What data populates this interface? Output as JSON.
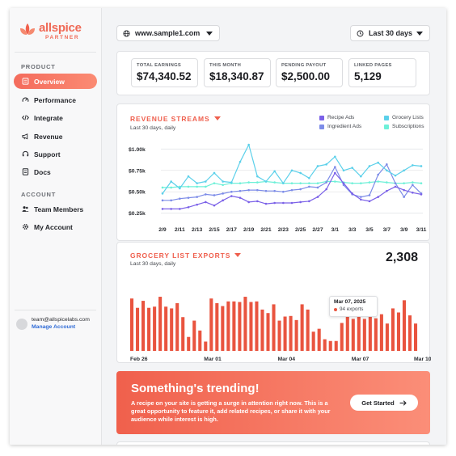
{
  "brand": {
    "name": "allspice",
    "subtitle": "PARTNER"
  },
  "sidebar": {
    "product_label": "PRODUCT",
    "product_items": [
      {
        "label": "Overview",
        "icon": "overview-icon",
        "active": true
      },
      {
        "label": "Performance",
        "icon": "gauge-icon"
      },
      {
        "label": "Integrate",
        "icon": "code-icon"
      },
      {
        "label": "Revenue",
        "icon": "megaphone-icon"
      },
      {
        "label": "Support",
        "icon": "headset-icon"
      },
      {
        "label": "Docs",
        "icon": "document-icon"
      }
    ],
    "account_label": "ACCOUNT",
    "account_items": [
      {
        "label": "Team Members",
        "icon": "users-icon"
      },
      {
        "label": "My Account",
        "icon": "gear-icon"
      }
    ],
    "account": {
      "email": "team@allspicelabs.com",
      "manage_label": "Manage Account"
    }
  },
  "header": {
    "site_select": "www.sample1.com",
    "range_select": "Last 30 days"
  },
  "stats": [
    {
      "label": "TOTAL EARNINGS",
      "value": "$74,340.52"
    },
    {
      "label": "THIS MONTH",
      "value": "$18,340.87"
    },
    {
      "label": "PENDING PAYOUT",
      "value": "$2,500.00"
    },
    {
      "label": "LINKED PAGES",
      "value": "5,129"
    }
  ],
  "revenue": {
    "title": "REVENUE STREAMS",
    "subtitle": "Last 30 days, daily",
    "legend": [
      {
        "name": "Recipe Ads",
        "color": "#7b61e8"
      },
      {
        "name": "Grocery Lists",
        "color": "#5bd0ea"
      },
      {
        "name": "Ingredient Ads",
        "color": "#7d8ce8"
      },
      {
        "name": "Subscriptions",
        "color": "#6ef0d8"
      }
    ]
  },
  "grocery": {
    "title": "GROCERY LIST EXPORTS",
    "subtitle": "Last 30 days, daily",
    "total": "2,308",
    "tooltip": {
      "date": "Mar 07, 2025",
      "value": "94 exports"
    }
  },
  "promo": {
    "title": "Something's trending!",
    "text": "A recipe on your site is getting a surge in attention right now. This is a great opportunity to feature it, add related recipes, or share it with your audience while interest is high.",
    "button": "Get Started"
  },
  "chart_data": [
    {
      "type": "line",
      "title": "REVENUE STREAMS",
      "x": [
        "2/9",
        "2/10",
        "2/11",
        "2/12",
        "2/13",
        "2/14",
        "2/15",
        "2/16",
        "2/17",
        "2/18",
        "2/19",
        "2/20",
        "2/21",
        "2/22",
        "2/23",
        "2/24",
        "2/25",
        "2/26",
        "2/27",
        "2/28",
        "3/1",
        "3/2",
        "3/3",
        "3/4",
        "3/5",
        "3/6",
        "3/7",
        "3/8",
        "3/9",
        "3/10",
        "3/11"
      ],
      "x_tick_labels": [
        "2/9",
        "2/11",
        "2/13",
        "2/15",
        "2/17",
        "2/19",
        "2/21",
        "2/23",
        "2/25",
        "2/27",
        "3/1",
        "3/3",
        "3/5",
        "3/7",
        "3/9",
        "3/11"
      ],
      "y_tick_labels": [
        "$0.25k",
        "$0.50k",
        "$0.75k",
        "$1.00k"
      ],
      "ylim": [
        0.2,
        1.05
      ],
      "grid": true,
      "legend_position": "top-right",
      "series": [
        {
          "name": "Recipe Ads",
          "color": "#7b61e8",
          "values": [
            0.3,
            0.3,
            0.3,
            0.32,
            0.35,
            0.38,
            0.34,
            0.4,
            0.45,
            0.43,
            0.38,
            0.39,
            0.36,
            0.37,
            0.37,
            0.37,
            0.38,
            0.39,
            0.44,
            0.53,
            0.72,
            0.6,
            0.48,
            0.41,
            0.39,
            0.44,
            0.51,
            0.56,
            0.52,
            0.49,
            0.47
          ]
        },
        {
          "name": "Grocery Lists",
          "color": "#5bd0ea",
          "values": [
            0.48,
            0.62,
            0.54,
            0.68,
            0.6,
            0.62,
            0.72,
            0.62,
            0.61,
            0.85,
            1.05,
            0.68,
            0.62,
            0.74,
            0.6,
            0.75,
            0.72,
            0.66,
            0.8,
            0.82,
            0.91,
            0.75,
            0.78,
            0.68,
            0.8,
            0.84,
            0.75,
            0.69,
            0.75,
            0.81,
            0.8
          ]
        },
        {
          "name": "Ingredient Ads",
          "color": "#7d8ce8",
          "values": [
            0.4,
            0.4,
            0.42,
            0.43,
            0.44,
            0.47,
            0.46,
            0.48,
            0.5,
            0.51,
            0.52,
            0.52,
            0.51,
            0.51,
            0.5,
            0.52,
            0.53,
            0.56,
            0.55,
            0.61,
            0.79,
            0.58,
            0.47,
            0.44,
            0.46,
            0.7,
            0.82,
            0.6,
            0.44,
            0.58,
            0.48
          ]
        },
        {
          "name": "Subscriptions",
          "color": "#6ef0d8",
          "values": [
            0.55,
            0.55,
            0.56,
            0.56,
            0.56,
            0.56,
            0.6,
            0.58,
            0.6,
            0.6,
            0.61,
            0.61,
            0.62,
            0.61,
            0.6,
            0.6,
            0.6,
            0.6,
            0.6,
            0.62,
            0.62,
            0.61,
            0.6,
            0.6,
            0.61,
            0.62,
            0.61,
            0.6,
            0.6,
            0.61,
            0.6
          ]
        }
      ]
    },
    {
      "type": "bar",
      "title": "GROCERY LIST EXPORTS",
      "tick_labels": [
        "Feb 26",
        "Mar 01",
        "Mar 04",
        "Mar 07",
        "Mar 10"
      ],
      "ylim": [
        0,
        100
      ],
      "color": "#e9543f",
      "values": [
        90,
        74,
        86,
        74,
        76,
        93,
        76,
        73,
        82,
        58,
        24,
        52,
        35,
        16,
        90,
        82,
        77,
        85,
        85,
        84,
        93,
        84,
        85,
        71,
        65,
        80,
        52,
        59,
        60,
        53,
        80,
        71,
        33,
        38,
        20,
        17,
        17,
        48,
        63,
        55,
        62,
        55,
        79,
        56,
        63,
        47,
        73,
        66,
        87,
        61,
        47
      ]
    }
  ]
}
